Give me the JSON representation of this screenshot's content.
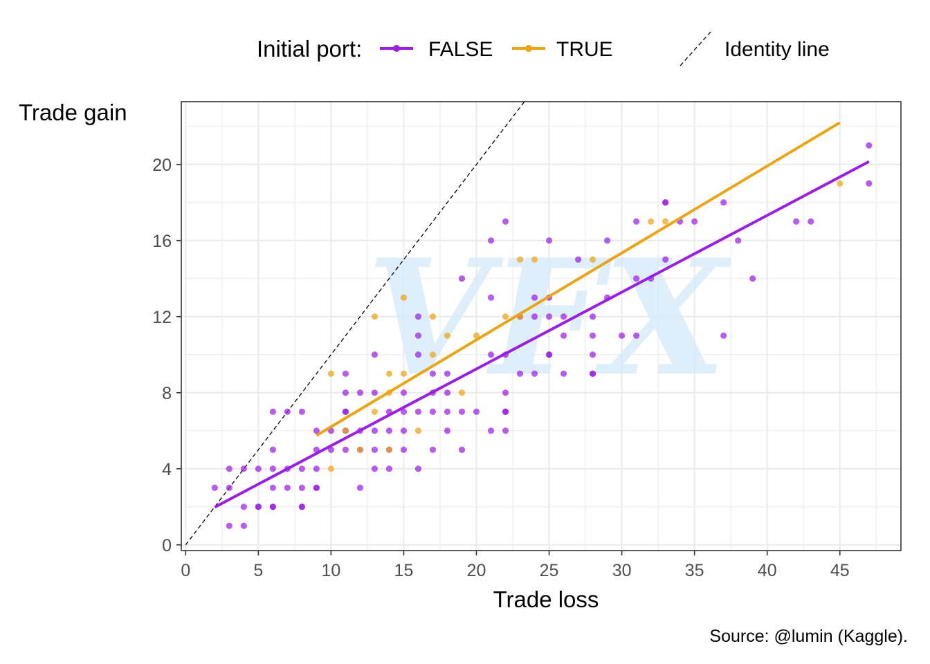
{
  "chart_data": {
    "type": "scatter",
    "xlabel": "Trade loss",
    "ylabel": "Trade gain",
    "xlim": [
      -0.3,
      49.2
    ],
    "ylim": [
      -0.3,
      23.3
    ],
    "x_ticks": [
      0,
      5,
      10,
      15,
      20,
      25,
      30,
      35,
      40,
      45
    ],
    "y_ticks": [
      0,
      4,
      8,
      12,
      16,
      20
    ],
    "grid": true,
    "legend_title": "Initial port:",
    "legend_position": "top",
    "caption": "Source: @lumin (Kaggle).",
    "watermark": "VFX",
    "series": [
      {
        "name": "FALSE",
        "color": "#9a1fe0",
        "points": [
          [
            2,
            3
          ],
          [
            3,
            4
          ],
          [
            3,
            3
          ],
          [
            3,
            1
          ],
          [
            4,
            4
          ],
          [
            4,
            2
          ],
          [
            4,
            1
          ],
          [
            5,
            4
          ],
          [
            5,
            2
          ],
          [
            5,
            2
          ],
          [
            6,
            7
          ],
          [
            6,
            5
          ],
          [
            6,
            4
          ],
          [
            6,
            3
          ],
          [
            6,
            2
          ],
          [
            6,
            2
          ],
          [
            7,
            7
          ],
          [
            7,
            4
          ],
          [
            7,
            3
          ],
          [
            8,
            7
          ],
          [
            8,
            4
          ],
          [
            8,
            3
          ],
          [
            8,
            2
          ],
          [
            8,
            2
          ],
          [
            9,
            6
          ],
          [
            9,
            5
          ],
          [
            9,
            4
          ],
          [
            9,
            3
          ],
          [
            9,
            3
          ],
          [
            10,
            6
          ],
          [
            10,
            5
          ],
          [
            11,
            9
          ],
          [
            11,
            8
          ],
          [
            11,
            7
          ],
          [
            11,
            7
          ],
          [
            11,
            6
          ],
          [
            11,
            5
          ],
          [
            12,
            8
          ],
          [
            12,
            6
          ],
          [
            12,
            5
          ],
          [
            12,
            3
          ],
          [
            13,
            10
          ],
          [
            13,
            8
          ],
          [
            13,
            6
          ],
          [
            13,
            5
          ],
          [
            13,
            4
          ],
          [
            14,
            7
          ],
          [
            14,
            6
          ],
          [
            14,
            5
          ],
          [
            14,
            4
          ],
          [
            15,
            8
          ],
          [
            15,
            7
          ],
          [
            15,
            6
          ],
          [
            15,
            5
          ],
          [
            16,
            12
          ],
          [
            16,
            11
          ],
          [
            16,
            10
          ],
          [
            16,
            7
          ],
          [
            16,
            4
          ],
          [
            17,
            9
          ],
          [
            17,
            8
          ],
          [
            17,
            7
          ],
          [
            17,
            5
          ],
          [
            18,
            9
          ],
          [
            18,
            8
          ],
          [
            18,
            7
          ],
          [
            18,
            6
          ],
          [
            19,
            14
          ],
          [
            19,
            7
          ],
          [
            19,
            5
          ],
          [
            20,
            7
          ],
          [
            21,
            16
          ],
          [
            21,
            13
          ],
          [
            21,
            10
          ],
          [
            21,
            6
          ],
          [
            22,
            17
          ],
          [
            22,
            10
          ],
          [
            22,
            8
          ],
          [
            22,
            7
          ],
          [
            22,
            7
          ],
          [
            22,
            6
          ],
          [
            23,
            12
          ],
          [
            23,
            9
          ],
          [
            24,
            13
          ],
          [
            24,
            12
          ],
          [
            24,
            9
          ],
          [
            25,
            16
          ],
          [
            25,
            13
          ],
          [
            25,
            12
          ],
          [
            25,
            10
          ],
          [
            25,
            10
          ],
          [
            26,
            12
          ],
          [
            26,
            11
          ],
          [
            26,
            9
          ],
          [
            27,
            15
          ],
          [
            28,
            12
          ],
          [
            28,
            11
          ],
          [
            28,
            10
          ],
          [
            28,
            9
          ],
          [
            28,
            9
          ],
          [
            29,
            16
          ],
          [
            29,
            13
          ],
          [
            30,
            11
          ],
          [
            31,
            17
          ],
          [
            31,
            14
          ],
          [
            31,
            11
          ],
          [
            32,
            14
          ],
          [
            33,
            18
          ],
          [
            33,
            18
          ],
          [
            33,
            15
          ],
          [
            34,
            17
          ],
          [
            35,
            17
          ],
          [
            37,
            18
          ],
          [
            37,
            11
          ],
          [
            38,
            16
          ],
          [
            39,
            14
          ],
          [
            42,
            17
          ],
          [
            43,
            17
          ],
          [
            47,
            21
          ],
          [
            47,
            19
          ]
        ],
        "trend": [
          [
            2,
            1.98
          ],
          [
            47,
            20.15
          ]
        ]
      },
      {
        "name": "TRUE",
        "color": "#eaa517",
        "points": [
          [
            10,
            9
          ],
          [
            10,
            4
          ],
          [
            11,
            6
          ],
          [
            12,
            5
          ],
          [
            13,
            12
          ],
          [
            13,
            7
          ],
          [
            14,
            9
          ],
          [
            14,
            8
          ],
          [
            14,
            5
          ],
          [
            15,
            13
          ],
          [
            15,
            9
          ],
          [
            16,
            6
          ],
          [
            17,
            12
          ],
          [
            17,
            10
          ],
          [
            18,
            11
          ],
          [
            19,
            8
          ],
          [
            20,
            11
          ],
          [
            22,
            12
          ],
          [
            23,
            15
          ],
          [
            23,
            12
          ],
          [
            24,
            15
          ],
          [
            28,
            15
          ],
          [
            32,
            17
          ],
          [
            33,
            17
          ],
          [
            45,
            19
          ]
        ],
        "trend": [
          [
            9,
            5.75
          ],
          [
            45,
            22.2
          ]
        ]
      }
    ],
    "identity_line": {
      "label": "Identity line",
      "slope": 1,
      "intercept": 0
    }
  }
}
